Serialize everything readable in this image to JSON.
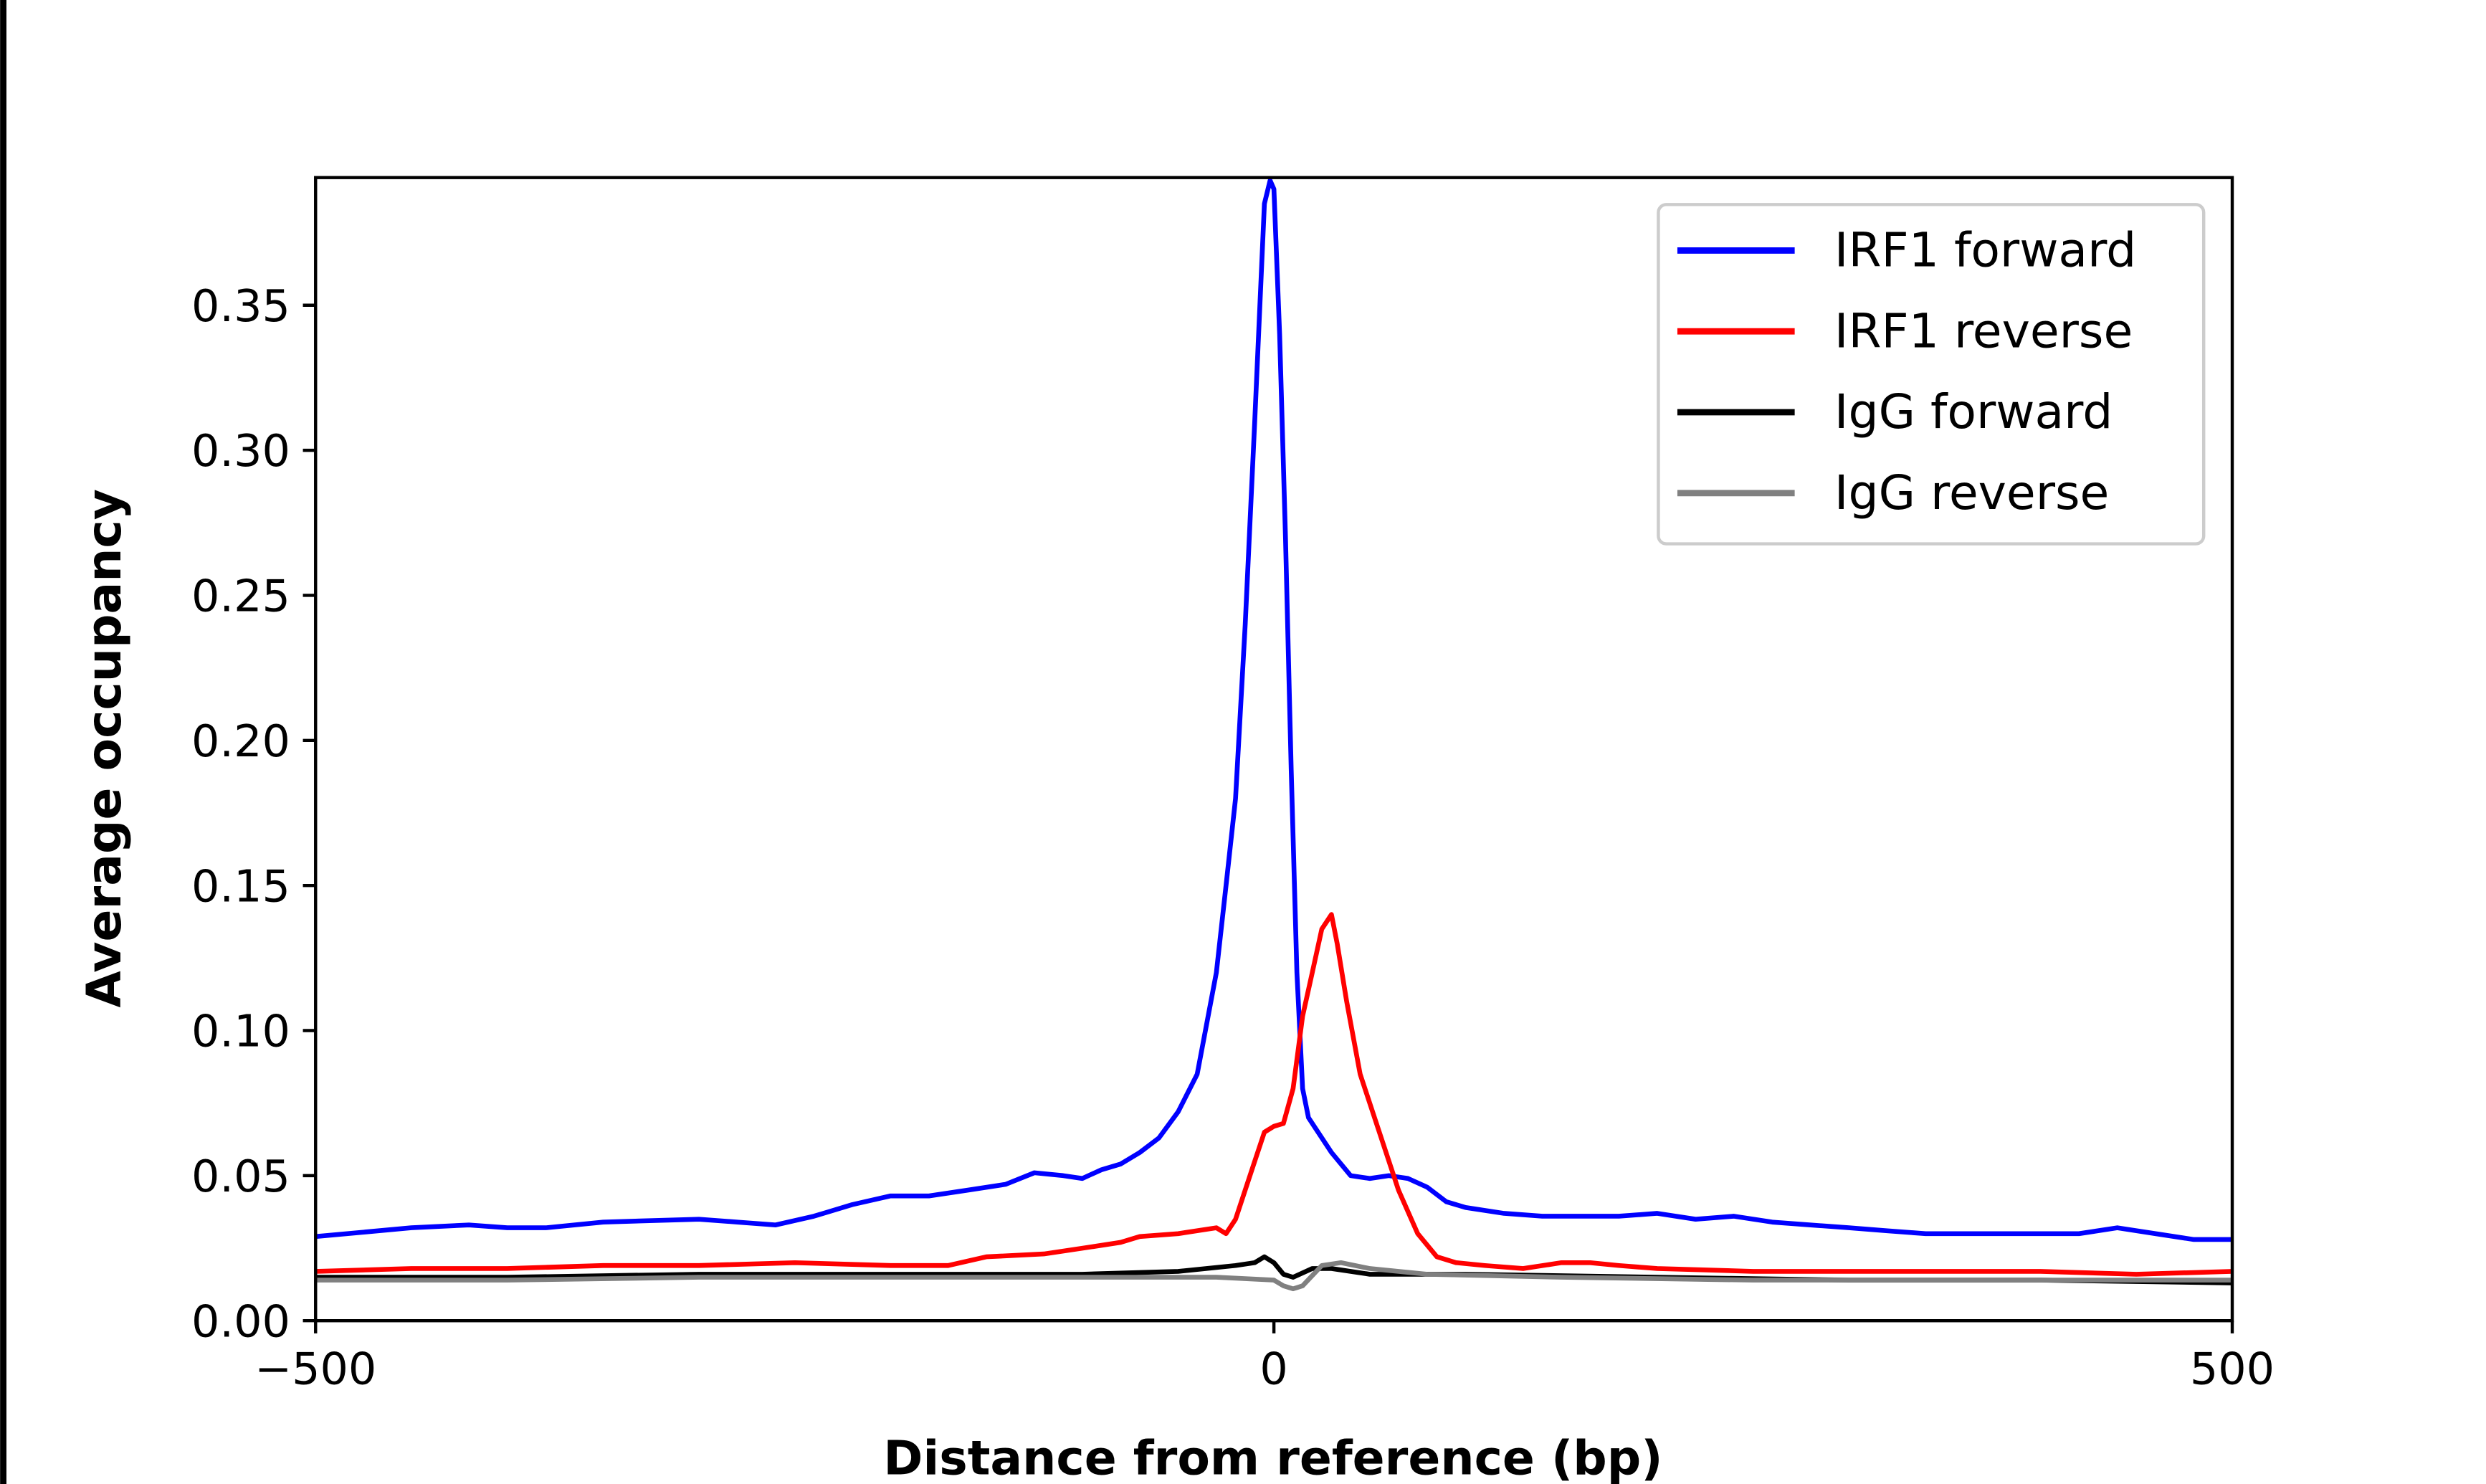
{
  "chart_data": {
    "type": "line",
    "title": "",
    "xlabel": "Distance from reference (bp)",
    "ylabel": "Average occupancy",
    "xlim": [
      -500,
      500
    ],
    "ylim": [
      0,
      0.394
    ],
    "xticks": [
      -500,
      0,
      500
    ],
    "xtick_labels": [
      "−500",
      "0",
      "500"
    ],
    "yticks": [
      0,
      0.05,
      0.1,
      0.15,
      0.2,
      0.25,
      0.3,
      0.35
    ],
    "ytick_labels": [
      "0.00",
      "0.05",
      "0.10",
      "0.15",
      "0.20",
      "0.25",
      "0.30",
      "0.35"
    ],
    "grid": false,
    "legend_position": "top-right",
    "series": [
      {
        "name": "IRF1 forward",
        "color": "#0000ff",
        "x": [
          -500,
          -450,
          -420,
          -400,
          -380,
          -350,
          -300,
          -280,
          -260,
          -240,
          -220,
          -200,
          -180,
          -160,
          -140,
          -125,
          -110,
          -100,
          -90,
          -80,
          -70,
          -60,
          -50,
          -40,
          -30,
          -25,
          -20,
          -15,
          -10,
          -5,
          -2,
          0,
          3,
          6,
          9,
          12,
          15,
          18,
          22,
          30,
          40,
          50,
          60,
          70,
          80,
          90,
          100,
          120,
          140,
          160,
          180,
          200,
          220,
          240,
          260,
          280,
          300,
          320,
          340,
          360,
          380,
          400,
          420,
          440,
          460,
          480,
          500
        ],
        "y": [
          0.029,
          0.032,
          0.033,
          0.032,
          0.032,
          0.034,
          0.035,
          0.034,
          0.033,
          0.036,
          0.04,
          0.043,
          0.043,
          0.045,
          0.047,
          0.051,
          0.05,
          0.049,
          0.052,
          0.054,
          0.058,
          0.063,
          0.072,
          0.085,
          0.12,
          0.15,
          0.18,
          0.24,
          0.31,
          0.385,
          0.393,
          0.39,
          0.34,
          0.27,
          0.19,
          0.12,
          0.08,
          0.07,
          0.066,
          0.058,
          0.05,
          0.049,
          0.05,
          0.049,
          0.046,
          0.041,
          0.039,
          0.037,
          0.036,
          0.036,
          0.036,
          0.037,
          0.035,
          0.036,
          0.034,
          0.033,
          0.032,
          0.031,
          0.03,
          0.03,
          0.03,
          0.03,
          0.03,
          0.032,
          0.03,
          0.028,
          0.028
        ]
      },
      {
        "name": "IRF1 reverse",
        "color": "#ff0000",
        "x": [
          -500,
          -450,
          -400,
          -350,
          -300,
          -250,
          -200,
          -170,
          -150,
          -120,
          -100,
          -80,
          -70,
          -50,
          -30,
          -25,
          -20,
          -10,
          -5,
          0,
          5,
          10,
          15,
          20,
          25,
          30,
          33,
          38,
          45,
          55,
          65,
          75,
          85,
          95,
          110,
          130,
          150,
          165,
          180,
          200,
          250,
          300,
          350,
          400,
          450,
          500
        ],
        "y": [
          0.017,
          0.018,
          0.018,
          0.019,
          0.019,
          0.02,
          0.019,
          0.019,
          0.022,
          0.023,
          0.025,
          0.027,
          0.029,
          0.03,
          0.032,
          0.03,
          0.035,
          0.055,
          0.065,
          0.067,
          0.068,
          0.08,
          0.105,
          0.12,
          0.135,
          0.14,
          0.13,
          0.11,
          0.085,
          0.065,
          0.045,
          0.03,
          0.022,
          0.02,
          0.019,
          0.018,
          0.02,
          0.02,
          0.019,
          0.018,
          0.017,
          0.017,
          0.017,
          0.017,
          0.016,
          0.017
        ]
      },
      {
        "name": "IgG forward",
        "color": "#000000",
        "x": [
          -500,
          -400,
          -300,
          -200,
          -100,
          -50,
          -20,
          -10,
          -5,
          0,
          5,
          10,
          20,
          30,
          50,
          100,
          200,
          300,
          400,
          500
        ],
        "y": [
          0.015,
          0.015,
          0.016,
          0.016,
          0.016,
          0.017,
          0.019,
          0.02,
          0.022,
          0.02,
          0.016,
          0.015,
          0.018,
          0.018,
          0.016,
          0.016,
          0.015,
          0.014,
          0.014,
          0.013
        ]
      },
      {
        "name": "IgG reverse",
        "color": "#808080",
        "x": [
          -500,
          -400,
          -300,
          -200,
          -100,
          -30,
          0,
          5,
          10,
          15,
          25,
          35,
          50,
          80,
          150,
          250,
          350,
          450,
          500
        ],
        "y": [
          0.014,
          0.014,
          0.015,
          0.015,
          0.015,
          0.015,
          0.014,
          0.012,
          0.011,
          0.012,
          0.019,
          0.02,
          0.018,
          0.016,
          0.015,
          0.014,
          0.014,
          0.014,
          0.014
        ]
      }
    ]
  }
}
